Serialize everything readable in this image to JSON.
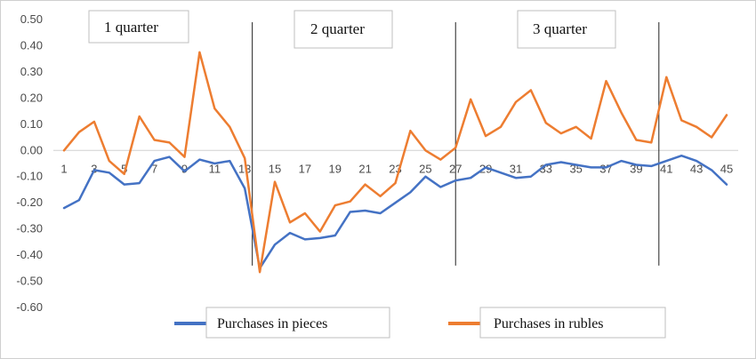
{
  "chart_data": {
    "type": "line",
    "title": "",
    "xlabel": "",
    "ylabel": "",
    "x": [
      1,
      2,
      3,
      4,
      5,
      6,
      7,
      8,
      9,
      10,
      11,
      12,
      13,
      14,
      15,
      16,
      17,
      18,
      19,
      20,
      21,
      22,
      23,
      24,
      25,
      26,
      27,
      28,
      29,
      30,
      31,
      32,
      33,
      34,
      35,
      36,
      37,
      38,
      39,
      40,
      41,
      42,
      43,
      44,
      45
    ],
    "x_tick_labels": [
      "1",
      "3",
      "5",
      "7",
      "9",
      "11",
      "13",
      "15",
      "17",
      "19",
      "21",
      "23",
      "25",
      "27",
      "29",
      "31",
      "33",
      "35",
      "37",
      "39",
      "41",
      "43",
      "45"
    ],
    "y_tick_labels": [
      "0.50",
      "0.40",
      "0.30",
      "0.20",
      "0.10",
      "0.00",
      "-0.10",
      "-0.20",
      "-0.30",
      "-0.40",
      "-0.50",
      "-0.60"
    ],
    "ylim": [
      -0.6,
      0.5
    ],
    "grid": false,
    "legend_position": "bottom",
    "series": [
      {
        "name": "Purchases in pieces",
        "color": "#4472C4",
        "values": [
          -0.22,
          -0.19,
          -0.075,
          -0.085,
          -0.13,
          -0.125,
          -0.04,
          -0.025,
          -0.08,
          -0.035,
          -0.05,
          -0.04,
          -0.145,
          -0.45,
          -0.36,
          -0.315,
          -0.34,
          -0.335,
          -0.325,
          -0.235,
          -0.23,
          -0.24,
          -0.2,
          -0.16,
          -0.1,
          -0.14,
          -0.115,
          -0.105,
          -0.065,
          -0.085,
          -0.105,
          -0.1,
          -0.055,
          -0.045,
          -0.055,
          -0.065,
          -0.065,
          -0.04,
          -0.055,
          -0.06,
          -0.04,
          -0.02,
          -0.04,
          -0.075,
          -0.13
        ]
      },
      {
        "name": "Purchases in rubles",
        "color": "#ED7D31",
        "values": [
          0.0,
          0.07,
          0.11,
          -0.04,
          -0.09,
          0.13,
          0.04,
          0.03,
          -0.025,
          0.375,
          0.16,
          0.09,
          -0.03,
          -0.465,
          -0.12,
          -0.275,
          -0.24,
          -0.31,
          -0.21,
          -0.195,
          -0.13,
          -0.175,
          -0.125,
          0.075,
          0.0,
          -0.035,
          0.01,
          0.195,
          0.055,
          0.09,
          0.185,
          0.23,
          0.105,
          0.065,
          0.09,
          0.045,
          0.265,
          0.145,
          0.04,
          0.03,
          0.28,
          0.115,
          0.09,
          0.05,
          0.135
        ]
      }
    ],
    "dividers_after_x": [
      13.5,
      27,
      40.5
    ],
    "annotations": [
      "1 quarter",
      "2 quarter",
      "3 quarter"
    ]
  },
  "colors": {
    "series_pieces": "#4472C4",
    "series_rubles": "#ED7D31",
    "axis": "#d0d0d0",
    "frame": "#cfcfcf"
  }
}
